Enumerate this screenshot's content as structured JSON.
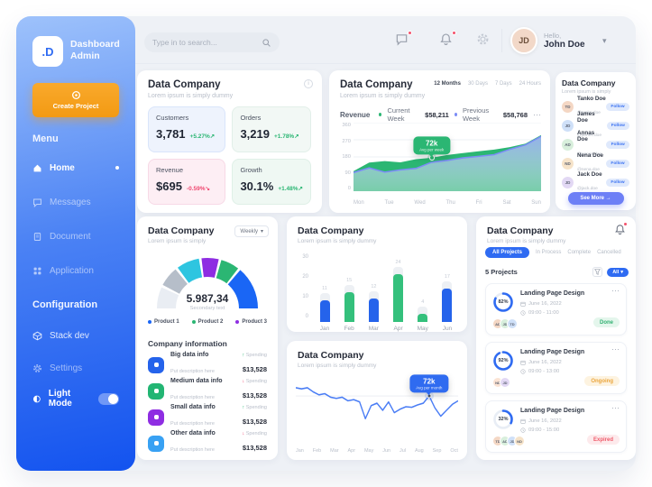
{
  "glyphs": {
    "dots": "⋯",
    "chevron": "▾",
    "info": "i"
  },
  "app": {
    "logo_text": ".D",
    "title": "Dashboard Admin"
  },
  "sidebar": {
    "create_button_label": "Create Project",
    "menu_heading": "Menu",
    "menu": [
      {
        "label": "Home",
        "active": true
      },
      {
        "label": "Messages"
      },
      {
        "label": "Document"
      },
      {
        "label": "Application"
      }
    ],
    "config_heading": "Configuration",
    "config": [
      {
        "label": "Stack dev"
      },
      {
        "label": "Settings"
      }
    ],
    "light_mode_label": "Light Mode",
    "light_mode_on": true
  },
  "topbar": {
    "search_placeholder": "Type in to search...",
    "greeting": "Hello,",
    "user_name": "John Doe",
    "user_initials": "JD"
  },
  "cards": {
    "stats": {
      "title": "Data Company",
      "subtitle": "Lorem ipsum is simply dummy",
      "items": [
        {
          "label": "Customers",
          "value": "3,781",
          "delta": "+5.27%",
          "arrow": "↗",
          "delta_color": "#2bb673",
          "bg": "#eef3fd",
          "border": "#d9e5fb"
        },
        {
          "label": "Orders",
          "value": "3,219",
          "delta": "+1.78%",
          "arrow": "↗",
          "delta_color": "#2bb673",
          "bg": "#f2f8f5",
          "border": "#e2efe9"
        },
        {
          "label": "Revenue",
          "value": "$695",
          "delta": "-0.59%",
          "arrow": "↘",
          "delta_color": "#ef476f",
          "bg": "#fdeef4",
          "border": "#f7d9e6"
        },
        {
          "label": "Growth",
          "value": "30.1%",
          "delta": "+1.48%",
          "arrow": "↗",
          "delta_color": "#2bb673",
          "bg": "#eff8f3",
          "border": "#dff0e7"
        }
      ]
    },
    "revenue": {
      "title": "Data Company",
      "subtitle": "Lorem ipsum is simply dummy",
      "metric_label": "Revenue",
      "ranges": [
        {
          "label": "12 Months",
          "active": true
        },
        {
          "label": "30 Days",
          "active": false
        },
        {
          "label": "7 Days",
          "active": false
        },
        {
          "label": "24 Hours",
          "active": false
        }
      ]
    },
    "followers": {
      "title": "Data Company",
      "subtitle": "Lorem ipsum is simply",
      "follow_label": "Follow",
      "more_label": "See More →",
      "users": [
        {
          "name": "Tanko Doe",
          "handle": "@tanko.doe",
          "avatar": {
            "i": "TD",
            "c": "#f4d7c4"
          }
        },
        {
          "name": "James Doe",
          "handle": "@james.doe",
          "avatar": {
            "i": "JD",
            "c": "#cfe0f8"
          }
        },
        {
          "name": "Annas Doe",
          "handle": "@annas.doe",
          "avatar": {
            "i": "AD",
            "c": "#d8efdc"
          }
        },
        {
          "name": "Nena Doe",
          "handle": "@nena.doe",
          "avatar": {
            "i": "ND",
            "c": "#f6e3c9"
          }
        },
        {
          "name": "Jack Doe",
          "handle": "@jack.doe",
          "avatar": {
            "i": "JD",
            "c": "#e2d8f4"
          }
        }
      ]
    },
    "gauge": {
      "title": "Data Company",
      "subtitle": "Lorem ipsum is simply",
      "period_label": "Weekly",
      "info_heading": "Company information",
      "info_rows": [
        {
          "title": "Big data info",
          "desc": "Put description here",
          "metric": "Spending",
          "value": "$13,528",
          "arrow": "↑",
          "arrow_color": "#2bb673",
          "icon_color": "#2563eb"
        },
        {
          "title": "Medium data info",
          "desc": "Put description here",
          "metric": "Spending",
          "value": "$13,528",
          "arrow": "↓",
          "arrow_color": "#ef476f",
          "icon_color": "#22b573"
        },
        {
          "title": "Small data info",
          "desc": "Put description here",
          "metric": "Spending",
          "value": "$13,528",
          "arrow": "↑",
          "arrow_color": "#2bb673",
          "icon_color": "#8e2de2"
        },
        {
          "title": "Other data info",
          "desc": "Put description here",
          "metric": "Spending",
          "value": "$13,528",
          "arrow": "↓",
          "arrow_color": "#ef476f",
          "icon_color": "#38a1f3"
        }
      ]
    },
    "bars": {
      "title": "Data Company",
      "subtitle": "Lorem ipsum is simply dummy"
    },
    "trend": {
      "title": "Data Company",
      "subtitle": "Lorem ipsum is simply dummy"
    },
    "projects": {
      "title": "Data Company",
      "subtitle": "Lorem ipsum is simply dummy",
      "tabs": [
        {
          "label": "All Projects",
          "active": true
        },
        {
          "label": "In Process",
          "active": false
        },
        {
          "label": "Complete",
          "active": false
        },
        {
          "label": "Cancelled",
          "active": false
        }
      ],
      "count_label": "5 Projects",
      "filter_label": "All",
      "items": [
        {
          "percent": "82%",
          "name": "Landing Page Design",
          "date": "June 16, 2022",
          "time": "09:00 - 11:00",
          "status": {
            "label": "Done",
            "bg": "#e4f6ec",
            "fg": "#33b172"
          },
          "team": [
            {
              "i": "AD",
              "c": "#f4d7c4"
            },
            {
              "i": "JD",
              "c": "#d8efdc"
            },
            {
              "i": "TD",
              "c": "#cfe0f8"
            }
          ]
        },
        {
          "percent": "92%",
          "name": "Landing Page Design",
          "date": "June 16, 2022",
          "time": "09:00 - 13:00",
          "status": {
            "label": "Ongoing",
            "bg": "#fdf3e0",
            "fg": "#eba53c"
          },
          "team": [
            {
              "i": "ND",
              "c": "#fbe3d4"
            },
            {
              "i": "JD",
              "c": "#e2d8f4"
            }
          ]
        },
        {
          "percent": "32%",
          "name": "Landing Page Design",
          "date": "June 16, 2022",
          "time": "09:00 - 15:00",
          "status": {
            "label": "Expired",
            "bg": "#fdeaec",
            "fg": "#ef5b6a"
          },
          "team": [
            {
              "i": "TD",
              "c": "#f4d7c4"
            },
            {
              "i": "AD",
              "c": "#d8efdc"
            },
            {
              "i": "JD",
              "c": "#cfe0f8"
            },
            {
              "i": "ND",
              "c": "#f6e3c9"
            }
          ]
        }
      ]
    }
  },
  "chart_data": {
    "revenue_area": {
      "type": "area",
      "title": "Revenue",
      "x_labels": [
        "Mon",
        "Tue",
        "Wed",
        "Thu",
        "Fri",
        "Sat",
        "Sun"
      ],
      "y_ticks": [
        360,
        270,
        180,
        90,
        0
      ],
      "ylim": [
        0,
        360
      ],
      "series": [
        {
          "name": "Current Week",
          "value_label": "$58,211",
          "color": "#2bb673",
          "values": [
            105,
            150,
            158,
            152,
            168,
            176,
            190,
            200,
            210,
            218,
            232,
            250,
            295
          ]
        },
        {
          "name": "Previous Week",
          "value_label": "$58,768",
          "color": "#7b8cf6",
          "values": [
            98,
            122,
            100,
            112,
            120,
            152,
            162,
            175,
            183,
            192,
            220,
            243,
            288
          ]
        }
      ],
      "tooltip": {
        "label": "72k",
        "sub": "Avg per week",
        "index": 5
      }
    },
    "orders_bar": {
      "type": "bar",
      "categories": [
        "Jan",
        "Feb",
        "Mar",
        "Apr",
        "May",
        "Jun"
      ],
      "values": [
        11,
        15,
        12,
        24,
        4,
        17
      ],
      "colors": [
        "#2563eb",
        "#34c07c",
        "#2563eb",
        "#34c07c",
        "#34c07c",
        "#2563eb"
      ],
      "y_ticks": [
        30,
        20,
        10,
        0
      ],
      "ylim": [
        0,
        32
      ]
    },
    "trend_line": {
      "type": "line",
      "x_labels": [
        "Jan",
        "Feb",
        "Mar",
        "Apr",
        "May",
        "Jun",
        "Jul",
        "Aug",
        "Sep",
        "Oct"
      ],
      "color": "#4a7df5",
      "ylim": [
        0,
        100
      ],
      "values": [
        82,
        80,
        82,
        75,
        70,
        72,
        66,
        64,
        66,
        60,
        62,
        58,
        30,
        52,
        56,
        44,
        58,
        40,
        46,
        50,
        49,
        53,
        56,
        68,
        48,
        34,
        44,
        54,
        60
      ],
      "tooltip": {
        "label": "72k",
        "sub": "Avg per month",
        "index": 23
      }
    },
    "products_gauge": {
      "type": "gauge",
      "center_value": "5.987,34",
      "center_sub": "Secondary text",
      "segments": [
        {
          "value": 15,
          "color": "#e9edf3"
        },
        {
          "value": 14,
          "color": "#b6bec9"
        },
        {
          "value": 16,
          "color": "#2ec5e0"
        },
        {
          "value": 12,
          "color": "#8e2de2"
        },
        {
          "value": 13,
          "color": "#2bb673"
        },
        {
          "value": 30,
          "color": "#1a66f5"
        }
      ],
      "legend": [
        {
          "label": "Product 1",
          "color": "#1a66f5"
        },
        {
          "label": "Product 2",
          "color": "#2bb673"
        },
        {
          "label": "Product 3",
          "color": "#8e2de2"
        }
      ]
    }
  }
}
